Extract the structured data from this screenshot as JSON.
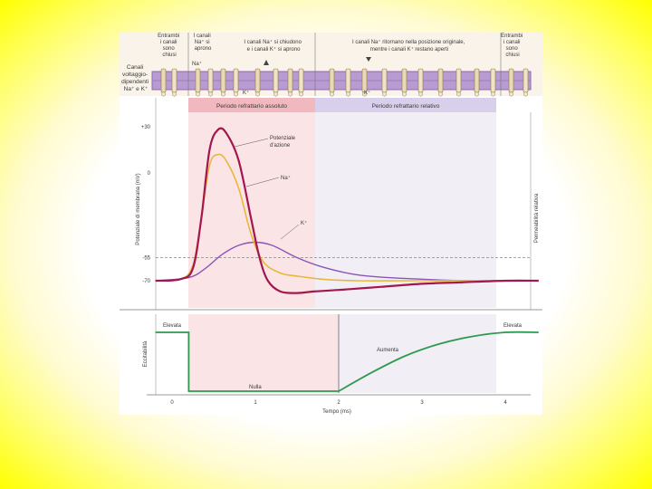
{
  "header": {
    "left_label": [
      "Canali",
      "voltaggio-",
      "dipendenti",
      "Na⁺ e K⁺"
    ],
    "phases": [
      [
        "Entrambi",
        "i canali",
        "sono",
        "chiusi"
      ],
      [
        "I canali",
        "Na⁺ si",
        "aprono"
      ],
      [
        "I canali Na⁺ si chiudono",
        "e i canali K⁺ si aprono"
      ],
      [
        "I canali Na⁺ ritornano nella posizione originale,",
        "mentre i canali K⁺ restano aperti"
      ],
      [
        "Entrambi",
        "i canali",
        "sono",
        "chiusi"
      ]
    ],
    "ion_na": "Na⁺",
    "ion_k": "K⁺"
  },
  "periods": {
    "absolute": "Periodo refrattario assoluto",
    "relative": "Periodo refrattario relativo"
  },
  "top_chart": {
    "ylabel": "Potenziale di membrana (mV)",
    "ylabel_right": "Permeabilità relativa",
    "yticks": [
      "+30",
      "0",
      "-55",
      "-70"
    ],
    "annotations": {
      "action_potential": [
        "Potenziale",
        "d'azione"
      ],
      "na": "Na⁺",
      "k": "K⁺"
    }
  },
  "bottom_chart": {
    "ylabel": "Eccitabilità",
    "xlabel": "Tempo (ms)",
    "xticks": [
      "0",
      "1",
      "2",
      "3",
      "4"
    ],
    "labels": {
      "high_left": "Elevata",
      "high_right": "Elevata",
      "null": "Nulla",
      "increasing": "Aumenta"
    }
  },
  "chart_data": {
    "type": "line",
    "x_unit": "ms",
    "xlim": [
      -0.2,
      4.4
    ],
    "ylim": [
      -75,
      38
    ],
    "series": [
      {
        "name": "Potenziale d'azione",
        "color": "#a3174f",
        "x": [
          -0.2,
          0.1,
          0.25,
          0.35,
          0.45,
          0.55,
          0.65,
          0.8,
          0.95,
          1.05,
          1.15,
          1.3,
          1.5,
          1.7,
          2.0,
          2.5,
          3.0,
          3.5,
          4.0,
          4.4
        ],
        "y": [
          -70,
          -69,
          -62,
          -30,
          15,
          28,
          26,
          8,
          -30,
          -55,
          -70,
          -77,
          -78,
          -77,
          -76,
          -74,
          -72,
          -71,
          -70,
          -70
        ]
      },
      {
        "name": "Na⁺",
        "color": "#e8b83a",
        "x": [
          -0.2,
          0.1,
          0.25,
          0.35,
          0.45,
          0.55,
          0.65,
          0.8,
          0.95,
          1.1,
          1.3,
          1.5,
          1.8,
          2.2,
          2.8,
          3.5,
          4.4
        ],
        "y": [
          -70,
          -69,
          -60,
          -30,
          5,
          12,
          8,
          -10,
          -40,
          -58,
          -65,
          -67,
          -69,
          -70,
          -70,
          -70,
          -70
        ]
      },
      {
        "name": "K⁺",
        "color": "#8a55b5",
        "x": [
          -0.2,
          0.2,
          0.4,
          0.6,
          0.8,
          1.0,
          1.2,
          1.5,
          1.8,
          2.2,
          2.6,
          3.0,
          3.5,
          4.0,
          4.4
        ],
        "y": [
          -70,
          -68,
          -62,
          -53,
          -47,
          -45,
          -47,
          -55,
          -61,
          -66,
          -68,
          -69,
          -70,
          -70,
          -70
        ]
      }
    ],
    "threshold_mV": -55,
    "excitability": {
      "x": [
        -0.2,
        0.2,
        0.2,
        2.0,
        2.0,
        2.4,
        2.8,
        3.2,
        3.6,
        4.0,
        4.4
      ],
      "y": [
        1,
        1,
        0,
        0,
        0,
        0.32,
        0.6,
        0.8,
        0.93,
        1,
        1
      ]
    },
    "absolute_refractory_ms": [
      0.2,
      1.8
    ],
    "relative_refractory_ms": [
      1.8,
      4.0
    ]
  }
}
